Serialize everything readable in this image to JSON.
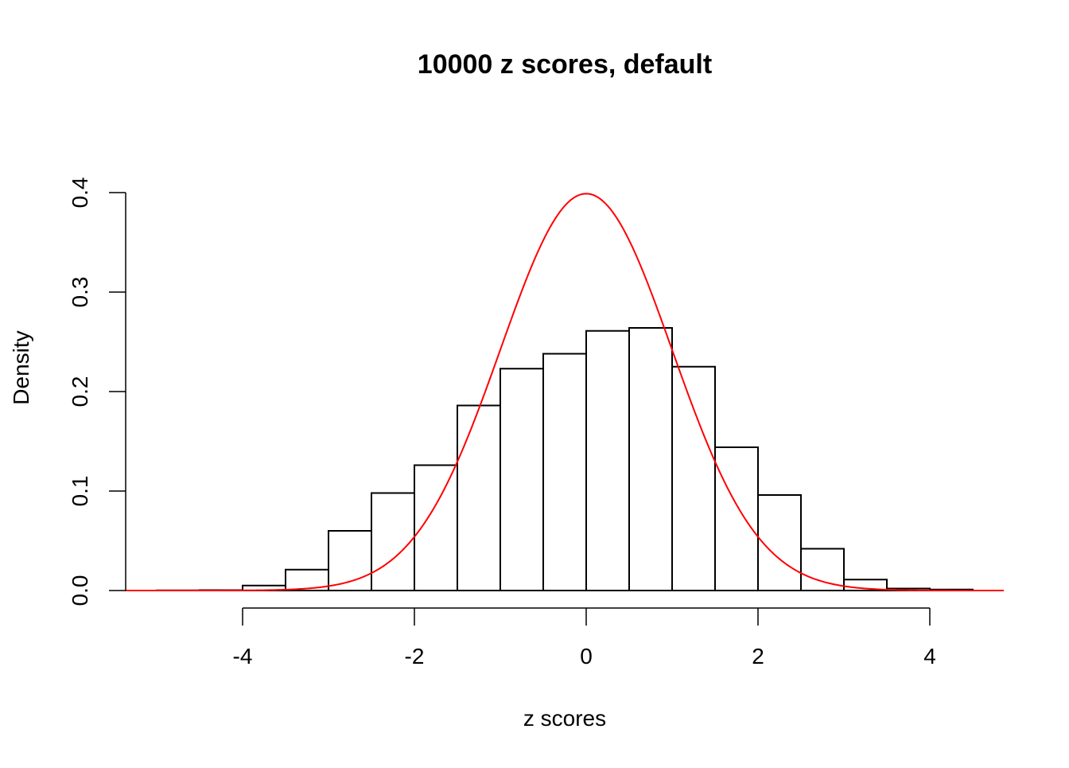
{
  "chart_data": {
    "type": "bar",
    "title": "10000 z scores, default",
    "xlabel": "z scores",
    "ylabel": "Density",
    "xlim": [
      -5.37,
      4.86
    ],
    "ylim": [
      0,
      0.4
    ],
    "x_ticks": [
      -4,
      -2,
      0,
      2,
      4
    ],
    "x_tick_labels": [
      "-4",
      "-2",
      "0",
      "2",
      "4"
    ],
    "y_ticks": [
      0,
      0.1,
      0.2,
      0.3,
      0.4
    ],
    "y_tick_labels": [
      "0.0",
      "0.1",
      "0.2",
      "0.3",
      "0.4"
    ],
    "grid": false,
    "bin_edges": [
      -5,
      -4.5,
      -4,
      -3.5,
      -3,
      -2.5,
      -2,
      -1.5,
      -1,
      -0.5,
      0,
      0.5,
      1,
      1.5,
      2,
      2.5,
      3,
      3.5,
      4,
      4.5
    ],
    "values": [
      0.0002,
      0.0004,
      0.005,
      0.021,
      0.06,
      0.098,
      0.126,
      0.186,
      0.223,
      0.238,
      0.261,
      0.264,
      0.225,
      0.144,
      0.096,
      0.042,
      0.011,
      0.002,
      0.001
    ],
    "bar_fill": "#ffffff",
    "bar_stroke": "#000000",
    "overlay": {
      "type": "line",
      "function": "standard normal density",
      "mean": 0,
      "sd": 1,
      "color": "#ff0000"
    }
  }
}
